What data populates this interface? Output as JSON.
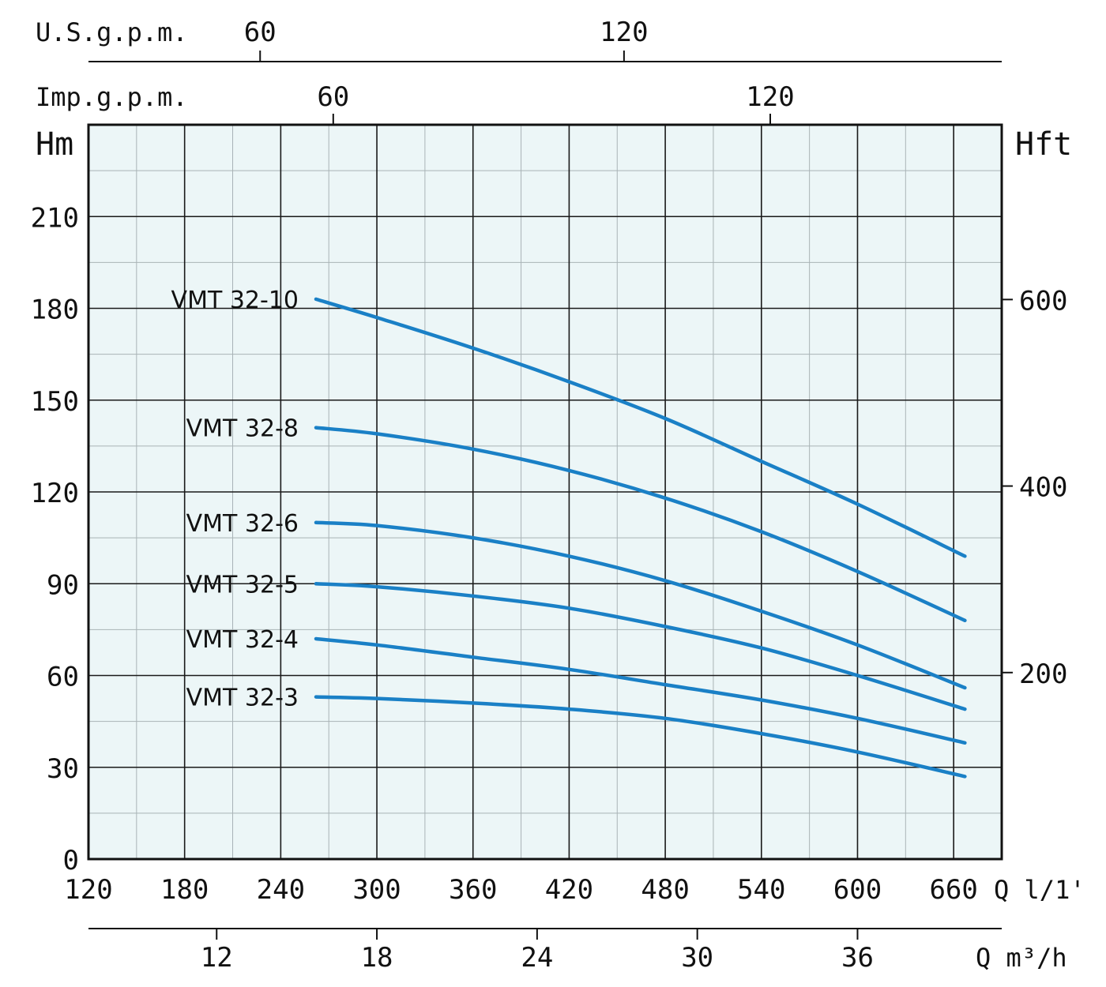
{
  "chart_data": {
    "type": "line",
    "colors": {
      "plot_bg": "#ecf6f7",
      "series": "#1a80c6",
      "minor_grid": "#a9b3b6",
      "major_grid": "#1a1a1a"
    },
    "grid": true,
    "y_left": {
      "label": "Hm",
      "ticks": [
        0,
        30,
        60,
        90,
        120,
        150,
        180,
        210
      ],
      "range": [
        0,
        240
      ],
      "minor_step": 15
    },
    "y_right": {
      "label": "Hft",
      "ticks": [
        200,
        400,
        600
      ],
      "tick_labels": [
        "200",
        "400",
        "600"
      ]
    },
    "x_bottom": {
      "label": "Q l/1'",
      "ticks": [
        120,
        180,
        240,
        300,
        360,
        420,
        480,
        540,
        600,
        660
      ],
      "tick_labels": [
        "120",
        "180",
        "240",
        "300",
        "360",
        "420",
        "480",
        "540",
        "600",
        "660"
      ],
      "range": [
        120,
        690
      ],
      "minor_step": 30
    },
    "x_m3h": {
      "label": "Q m³/h",
      "ticks": [
        12,
        18,
        24,
        30,
        36
      ],
      "tick_labels": [
        "12",
        "18",
        "24",
        "30",
        "36"
      ]
    },
    "x_usgpm": {
      "label": "U.S.g.p.m.",
      "ticks": [
        60,
        120
      ],
      "tick_labels": [
        "60",
        "120"
      ]
    },
    "x_impgpm": {
      "label": "Imp.g.p.m.",
      "ticks": [
        60,
        120
      ],
      "tick_labels": [
        "60",
        "120"
      ]
    },
    "series": [
      {
        "name": "VMT 32-10",
        "x": [
          262,
          300,
          360,
          420,
          480,
          540,
          600,
          667
        ],
        "y": [
          183,
          177,
          167,
          156,
          144,
          130,
          116,
          99
        ]
      },
      {
        "name": "VMT 32-8",
        "x": [
          262,
          300,
          360,
          420,
          480,
          540,
          600,
          667
        ],
        "y": [
          141,
          139,
          134,
          127,
          118,
          107,
          94,
          78
        ]
      },
      {
        "name": "VMT 32-6",
        "x": [
          262,
          300,
          360,
          420,
          480,
          540,
          600,
          667
        ],
        "y": [
          110,
          109,
          105,
          99,
          91,
          81,
          70,
          56
        ]
      },
      {
        "name": "VMT 32-5",
        "x": [
          262,
          300,
          360,
          420,
          480,
          540,
          600,
          667
        ],
        "y": [
          90,
          89,
          86,
          82,
          76,
          69,
          60,
          49
        ]
      },
      {
        "name": "VMT 32-4",
        "x": [
          262,
          300,
          360,
          420,
          480,
          540,
          600,
          667
        ],
        "y": [
          72,
          70,
          66,
          62,
          57,
          52,
          46,
          38
        ]
      },
      {
        "name": "VMT 32-3",
        "x": [
          262,
          300,
          360,
          420,
          480,
          540,
          600,
          667
        ],
        "y": [
          53,
          52.5,
          51,
          49,
          46,
          41,
          35,
          27
        ]
      }
    ]
  }
}
